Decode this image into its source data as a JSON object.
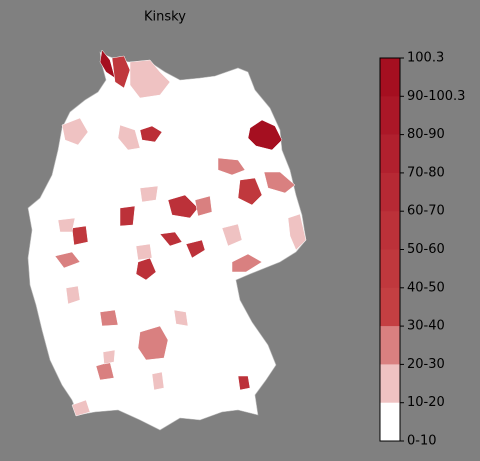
{
  "title": "Kinsky",
  "legend": {
    "labels": [
      "100.3",
      "90-100.3",
      "80-90",
      "70-80",
      "60-70",
      "50-60",
      "40-50",
      "30-40",
      "20-30",
      "10-20",
      "0-10"
    ],
    "colors": [
      "#a50f20",
      "#ab1727",
      "#b1202e",
      "#b72934",
      "#bc3139",
      "#c0383d",
      "#c43f42",
      "#d98080",
      "#efc2c2",
      "#ffffff"
    ]
  }
}
